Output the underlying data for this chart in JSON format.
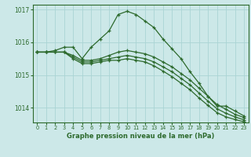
{
  "title": "Graphe pression niveau de la mer (hPa)",
  "bg_color": "#cce8e8",
  "grid_color": "#aad4d4",
  "line_color": "#2d6a2d",
  "xlim": [
    -0.5,
    23.5
  ],
  "ylim": [
    1013.55,
    1017.15
  ],
  "yticks": [
    1014,
    1015,
    1016,
    1017
  ],
  "xticks": [
    0,
    1,
    2,
    3,
    4,
    5,
    6,
    7,
    8,
    9,
    10,
    11,
    12,
    13,
    14,
    15,
    16,
    17,
    18,
    19,
    20,
    21,
    22,
    23
  ],
  "series": [
    [
      1015.7,
      1015.7,
      1015.75,
      1015.85,
      1015.85,
      1015.5,
      1015.85,
      1016.1,
      1016.35,
      1016.85,
      1016.95,
      1016.85,
      1016.65,
      1016.45,
      1016.1,
      1015.8,
      1015.5,
      1015.1,
      1014.75,
      1014.35,
      1014.05,
      1014.05,
      1013.9,
      1013.75
    ],
    [
      1015.7,
      1015.7,
      1015.7,
      1015.7,
      1015.6,
      1015.45,
      1015.45,
      1015.5,
      1015.6,
      1015.7,
      1015.75,
      1015.7,
      1015.65,
      1015.55,
      1015.4,
      1015.25,
      1015.05,
      1014.85,
      1014.6,
      1014.35,
      1014.1,
      1013.95,
      1013.8,
      1013.7
    ],
    [
      1015.7,
      1015.7,
      1015.7,
      1015.7,
      1015.55,
      1015.4,
      1015.4,
      1015.45,
      1015.5,
      1015.55,
      1015.6,
      1015.55,
      1015.5,
      1015.4,
      1015.25,
      1015.1,
      1014.9,
      1014.7,
      1014.45,
      1014.2,
      1013.97,
      1013.83,
      1013.72,
      1013.63
    ],
    [
      1015.7,
      1015.7,
      1015.7,
      1015.7,
      1015.5,
      1015.35,
      1015.35,
      1015.4,
      1015.45,
      1015.45,
      1015.5,
      1015.45,
      1015.4,
      1015.28,
      1015.12,
      1014.95,
      1014.75,
      1014.55,
      1014.3,
      1014.07,
      1013.85,
      1013.72,
      1013.64,
      1013.57
    ]
  ]
}
